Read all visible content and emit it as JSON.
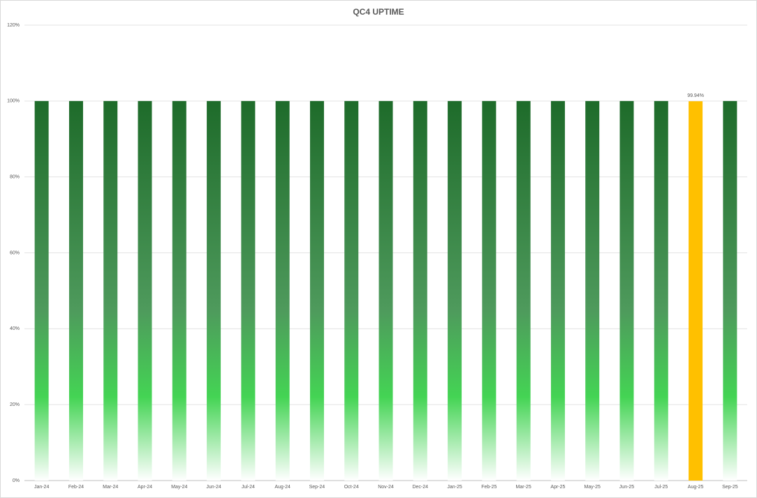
{
  "chart_data": {
    "type": "bar",
    "title": "QC4 UPTIME",
    "categories": [
      "Jan-24",
      "Feb-24",
      "Mar-24",
      "Apr-24",
      "May-24",
      "Jun-24",
      "Jul-24",
      "Aug-24",
      "Sep-24",
      "Oct-24",
      "Nov-24",
      "Dec-24",
      "Jan-25",
      "Feb-25",
      "Mar-25",
      "Apr-25",
      "May-25",
      "Jun-25",
      "Jul-25",
      "Aug-25",
      "Sep-25"
    ],
    "values": [
      100,
      100,
      100,
      100,
      100,
      100,
      100,
      100,
      100,
      100,
      100,
      100,
      100,
      100,
      100,
      100,
      100,
      100,
      100,
      99.94,
      100
    ],
    "value_labels": [
      null,
      null,
      null,
      null,
      null,
      null,
      null,
      null,
      null,
      null,
      null,
      null,
      null,
      null,
      null,
      null,
      null,
      null,
      null,
      "99.94%",
      null
    ],
    "colors": [
      [
        "#1e6b2a",
        "#4e9a5c",
        "#44d454",
        "#ffffff"
      ],
      [
        "#1e6b2a",
        "#4e9a5c",
        "#44d454",
        "#ffffff"
      ],
      [
        "#1e6b2a",
        "#4e9a5c",
        "#44d454",
        "#ffffff"
      ],
      [
        "#1e6b2a",
        "#4e9a5c",
        "#44d454",
        "#ffffff"
      ],
      [
        "#1e6b2a",
        "#4e9a5c",
        "#44d454",
        "#ffffff"
      ],
      [
        "#1e6b2a",
        "#4e9a5c",
        "#44d454",
        "#ffffff"
      ],
      [
        "#1e6b2a",
        "#4e9a5c",
        "#44d454",
        "#ffffff"
      ],
      [
        "#1e6b2a",
        "#4e9a5c",
        "#44d454",
        "#ffffff"
      ],
      [
        "#1e6b2a",
        "#4e9a5c",
        "#44d454",
        "#ffffff"
      ],
      [
        "#1e6b2a",
        "#4e9a5c",
        "#44d454",
        "#ffffff"
      ],
      [
        "#1e6b2a",
        "#4e9a5c",
        "#44d454",
        "#ffffff"
      ],
      [
        "#1e6b2a",
        "#4e9a5c",
        "#44d454",
        "#ffffff"
      ],
      [
        "#1e6b2a",
        "#4e9a5c",
        "#44d454",
        "#ffffff"
      ],
      [
        "#1e6b2a",
        "#4e9a5c",
        "#44d454",
        "#ffffff"
      ],
      [
        "#1e6b2a",
        "#4e9a5c",
        "#44d454",
        "#ffffff"
      ],
      [
        "#1e6b2a",
        "#4e9a5c",
        "#44d454",
        "#ffffff"
      ],
      [
        "#1e6b2a",
        "#4e9a5c",
        "#44d454",
        "#ffffff"
      ],
      [
        "#1e6b2a",
        "#4e9a5c",
        "#44d454",
        "#ffffff"
      ],
      [
        "#1e6b2a",
        "#4e9a5c",
        "#44d454",
        "#ffffff"
      ],
      "#ffc000",
      [
        "#1e6b2a",
        "#4e9a5c",
        "#44d454",
        "#ffffff"
      ]
    ],
    "ylim": [
      0,
      120
    ],
    "yticks": [
      {
        "value": 0,
        "label": "0%"
      },
      {
        "value": 20,
        "label": "20%"
      },
      {
        "value": 40,
        "label": "40%"
      },
      {
        "value": 60,
        "label": "60%"
      },
      {
        "value": 80,
        "label": "80%"
      },
      {
        "value": 100,
        "label": "100%"
      },
      {
        "value": 120,
        "label": "120%"
      }
    ],
    "grid": true
  }
}
